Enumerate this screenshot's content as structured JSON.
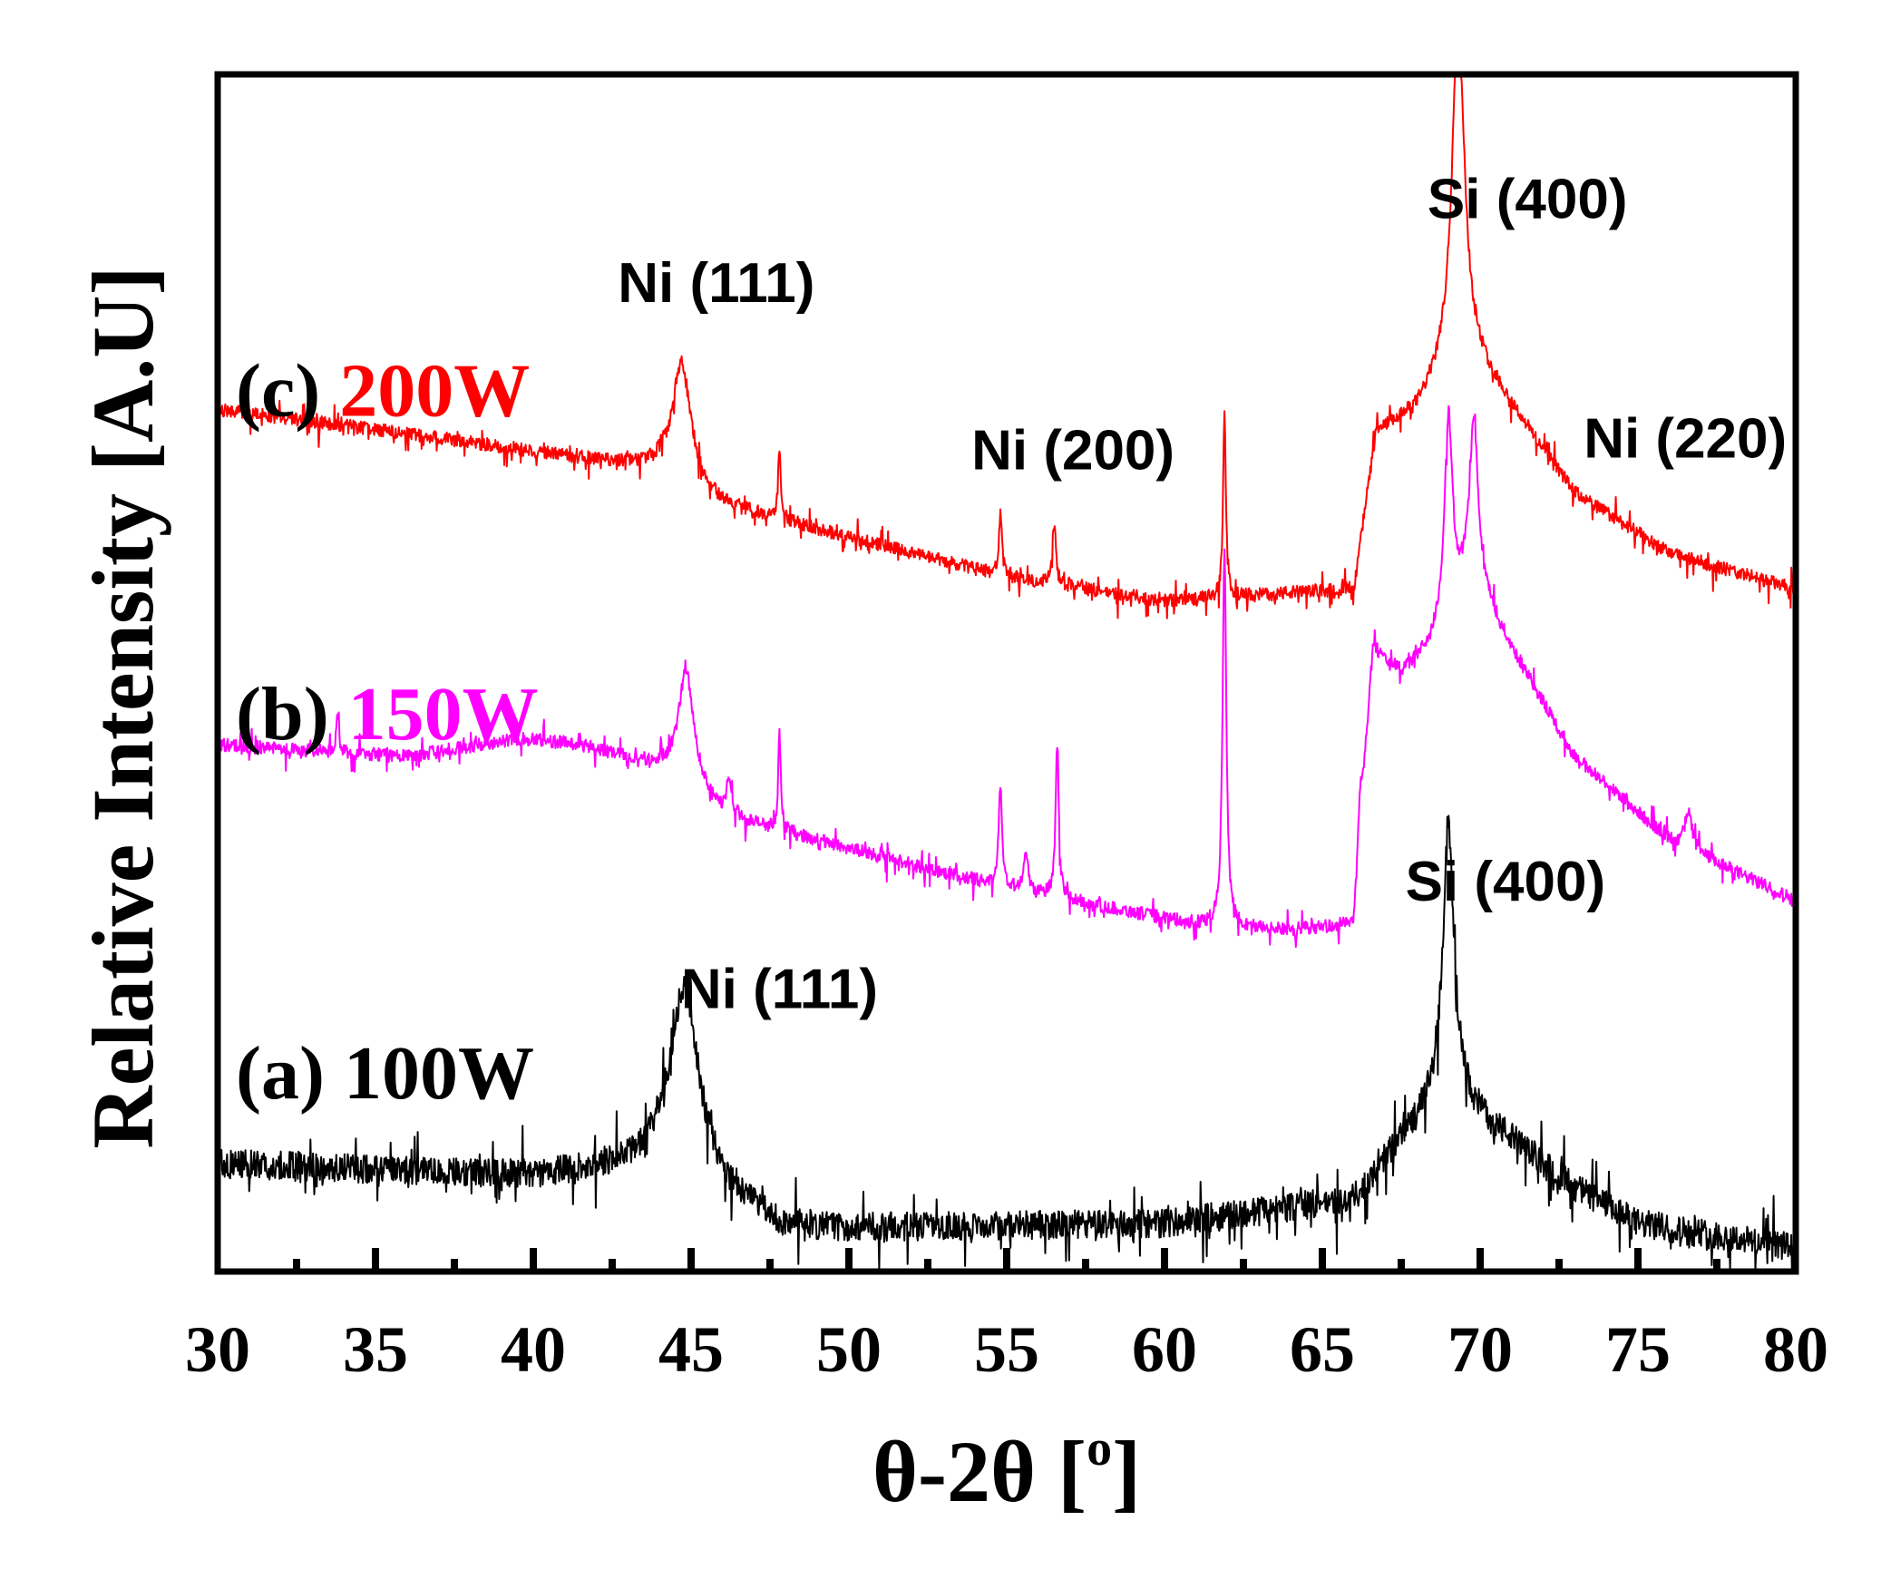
{
  "chart_data": {
    "type": "line",
    "title": "",
    "xlabel": "θ-2θ [°]",
    "xlabel_base": "θ-2θ [",
    "xlabel_sup": "o",
    "xlabel_end": "]",
    "ylabel": "Relative Intensity [A.U]",
    "xlim": [
      30,
      80
    ],
    "ylim": [
      0,
      100
    ],
    "xticks": [
      30,
      35,
      40,
      45,
      50,
      55,
      60,
      65,
      70,
      75,
      80
    ],
    "xtick_labels": [
      "30",
      "35",
      "40",
      "45",
      "50",
      "55",
      "60",
      "65",
      "70",
      "75",
      "80"
    ],
    "yticks_shown": false,
    "grid": false,
    "series": [
      {
        "name": "(a) 100W",
        "prefix": "(a) ",
        "power": "100W",
        "color": "#000000",
        "baseline": [
          [
            30,
            9
          ],
          [
            40,
            8
          ],
          [
            44,
            9
          ],
          [
            48,
            3.5
          ],
          [
            60,
            4
          ],
          [
            66,
            6
          ],
          [
            67.5,
            11
          ],
          [
            68.6,
            14
          ],
          [
            69.4,
            14
          ],
          [
            71,
            11
          ],
          [
            73,
            7
          ],
          [
            75,
            4
          ],
          [
            80,
            2
          ]
        ],
        "noise": 1.2,
        "peaks": [
          [
            44.8,
            16,
            0.55
          ],
          [
            69.0,
            23,
            0.22
          ]
        ]
      },
      {
        "name": "(b) 150W",
        "prefix": "(b) ",
        "power": "150W",
        "color": "#ff00ff",
        "baseline": [
          [
            30,
            44
          ],
          [
            36,
            43
          ],
          [
            39.5,
            44.5
          ],
          [
            41.5,
            44
          ],
          [
            44,
            42
          ],
          [
            46,
            38
          ],
          [
            55,
            32
          ],
          [
            61,
            29
          ],
          [
            64,
            28.5
          ],
          [
            66,
            29
          ],
          [
            66.6,
            52
          ],
          [
            67.5,
            50
          ],
          [
            68.4,
            52
          ],
          [
            69.0,
            55
          ],
          [
            69.5,
            56
          ],
          [
            70.3,
            55
          ],
          [
            73,
            43
          ],
          [
            76,
            36
          ],
          [
            80,
            31
          ]
        ],
        "noise": 0.55,
        "peaks": [
          [
            33.8,
            3,
            0.05
          ],
          [
            44.85,
            10,
            0.3
          ],
          [
            46.2,
            3,
            0.1
          ],
          [
            47.8,
            8,
            0.05
          ],
          [
            54.8,
            8,
            0.07
          ],
          [
            55.6,
            3,
            0.1
          ],
          [
            56.6,
            13,
            0.06
          ],
          [
            61.9,
            32,
            0.07
          ],
          [
            66.2,
            4,
            0.08
          ],
          [
            69.0,
            16,
            0.15
          ],
          [
            69.8,
            15,
            0.18
          ],
          [
            76.6,
            3,
            0.15
          ]
        ]
      },
      {
        "name": "(c) 200W",
        "prefix": "(c) ",
        "power": "200W",
        "color": "#ff0000",
        "baseline": [
          [
            30,
            72
          ],
          [
            36,
            70
          ],
          [
            40,
            68.5
          ],
          [
            44,
            67
          ],
          [
            46,
            64
          ],
          [
            55,
            58
          ],
          [
            60,
            56
          ],
          [
            66,
            57
          ],
          [
            66.7,
            70
          ],
          [
            68,
            72
          ],
          [
            68.8,
            75
          ],
          [
            69.6,
            77
          ],
          [
            70.5,
            74
          ],
          [
            73,
            65
          ],
          [
            76,
            60
          ],
          [
            80,
            57
          ]
        ],
        "noise": 0.55,
        "peaks": [
          [
            44.7,
            10,
            0.35
          ],
          [
            47.8,
            6,
            0.05
          ],
          [
            54.8,
            5,
            0.06
          ],
          [
            56.5,
            5,
            0.07
          ],
          [
            61.9,
            16,
            0.05
          ],
          [
            69.3,
            30,
            0.22
          ]
        ]
      }
    ],
    "annotations": [
      {
        "text": "Ni (111)",
        "x": 45.8,
        "y": 81
      },
      {
        "text": "Si (400)",
        "x": 71.5,
        "y": 88
      },
      {
        "text": "Ni (200)",
        "x": 57.1,
        "y": 67
      },
      {
        "text": "Ni (220)",
        "x": 76.5,
        "y": 68
      },
      {
        "text": "Si (400)",
        "x": 70.8,
        "y": 31
      },
      {
        "text": "Ni (111)",
        "x": 47.8,
        "y": 22
      }
    ]
  }
}
